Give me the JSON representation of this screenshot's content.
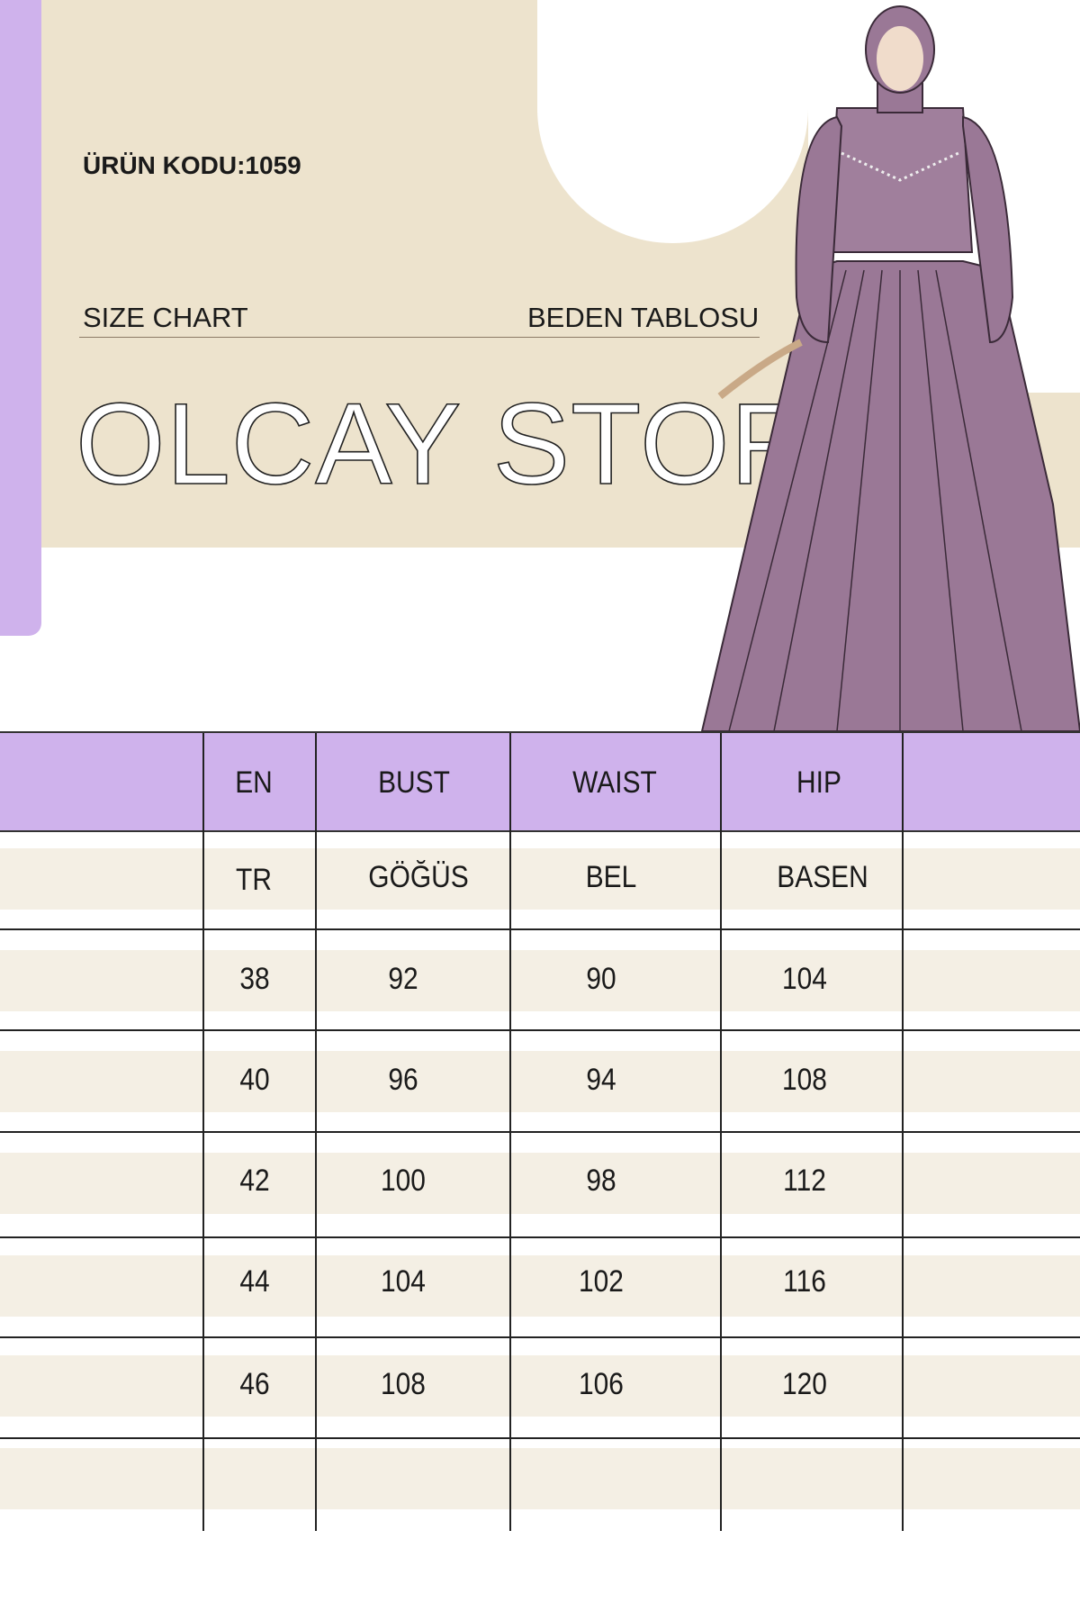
{
  "header": {
    "product_code": "ÜRÜN KODU:1059",
    "size_chart_label": "SIZE CHART",
    "size_chart_label_tr": "BEDEN TABLOSU",
    "brand": "OLCAY STORE"
  },
  "colors": {
    "accent": "#cfb2ec",
    "beige": "#ede3cd",
    "row_band": "#f4efe4",
    "dress": "#9a7896"
  },
  "table": {
    "columns": [
      "EN",
      "BUST",
      "WAIST",
      "HIP"
    ],
    "columns_tr": [
      "TR",
      "GÖĞÜS",
      "BEL",
      "BASEN"
    ],
    "rows": [
      [
        "38",
        "92",
        "90",
        "104"
      ],
      [
        "40",
        "96",
        "94",
        "108"
      ],
      [
        "42",
        "100",
        "98",
        "112"
      ],
      [
        "44",
        "104",
        "102",
        "116"
      ],
      [
        "46",
        "108",
        "106",
        "120"
      ]
    ]
  }
}
